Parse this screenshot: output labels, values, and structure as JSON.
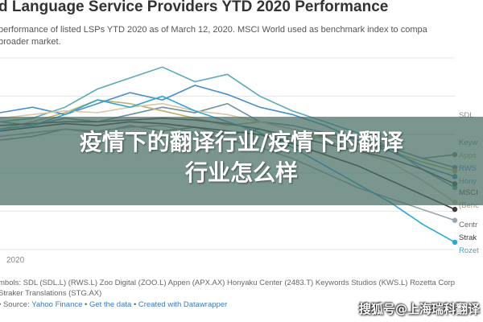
{
  "chart_data": {
    "type": "line",
    "title": "d Language Service Providers YTD 2020 Performance",
    "subtitle_lines": [
      "performance of listed LSPs YTD 2020 as of March 12, 2020. MSCI World used as benchmark index to compa",
      "broader market."
    ],
    "x_tick_label": "2020",
    "grid": true,
    "legend_placement": "right",
    "series": [
      {
        "name": "SDL",
        "color": "#8a8a8a",
        "values": [
          0.9,
          0.92,
          0.96,
          0.94,
          0.98,
          0.95,
          0.97,
          0.93,
          0.96,
          0.9,
          0.92,
          0.88,
          0.86,
          0.8,
          0.82
        ]
      },
      {
        "name": "Keyw",
        "color": "#6f8f9f",
        "values": [
          1.0,
          0.98,
          1.02,
          1.0,
          1.04,
          1.08,
          1.05,
          1.1,
          1.0,
          0.98,
          0.94,
          0.9,
          0.86,
          0.8,
          0.75
        ]
      },
      {
        "name": "Apps",
        "color": "#bfb16a",
        "values": [
          0.96,
          1.0,
          1.05,
          1.12,
          1.1,
          1.06,
          1.02,
          0.98,
          1.0,
          0.96,
          0.92,
          0.88,
          0.84,
          0.78,
          0.73
        ]
      },
      {
        "name": "RWS",
        "color": "#4a8fc8",
        "values": [
          1.05,
          1.08,
          1.04,
          1.1,
          1.16,
          1.12,
          1.2,
          1.15,
          1.08,
          1.04,
          0.98,
          0.9,
          0.84,
          0.76,
          0.7
        ]
      },
      {
        "name": "Hony",
        "color": "#5da9b5",
        "values": [
          1.0,
          1.02,
          1.08,
          1.18,
          1.24,
          1.3,
          1.22,
          1.26,
          1.14,
          1.06,
          1.0,
          0.94,
          0.86,
          0.74,
          0.64
        ]
      },
      {
        "name": "MSCI",
        "color": "#555555",
        "values": [
          0.98,
          0.99,
          1.0,
          1.0,
          1.01,
          1.02,
          1.01,
          0.99,
          0.96,
          0.92,
          0.88,
          0.84,
          0.8,
          0.74,
          0.66
        ]
      },
      {
        "name": "Bench",
        "color": "#d9c7a8",
        "values": [
          1.02,
          1.04,
          1.06,
          1.05,
          1.08,
          1.1,
          1.06,
          1.04,
          1.0,
          0.96,
          0.9,
          0.84,
          0.78,
          0.68,
          0.56
        ]
      },
      {
        "name": "Stra",
        "color": "#9aa4ad",
        "values": [
          0.92,
          0.94,
          0.96,
          0.95,
          0.97,
          0.98,
          0.94,
          0.9,
          0.86,
          0.8,
          0.72,
          0.64,
          0.58,
          0.52,
          0.46
        ]
      },
      {
        "name": "Rozetta",
        "color": "#2fa5d6",
        "values": [
          0.96,
          0.98,
          1.04,
          1.12,
          1.08,
          1.14,
          1.06,
          1.0,
          0.94,
          0.86,
          0.76,
          0.66,
          0.56,
          0.44,
          0.34
        ]
      },
      {
        "name": "Strak",
        "color": "#3d3d3d",
        "values": [
          0.95,
          0.97,
          0.99,
          0.98,
          1.0,
          0.99,
          0.97,
          0.95,
          0.93,
          0.88,
          0.82,
          0.76,
          0.68,
          0.6,
          0.52
        ]
      }
    ],
    "right_labels": [
      "SDL",
      "Keyw",
      "Apps",
      "RWS",
      "Hony",
      "MSCI",
      "(Benc",
      "Centr",
      "Strak",
      "Rozet"
    ],
    "ylim": [
      0.3,
      1.35
    ]
  },
  "footer": {
    "symbols_line": "mbols: SDL (SDL.L) (RWS.L) Zoo Digital (ZOO.L) Appen (APX.AX) Honyaku Center (2483.T) Keywords Studios (KWS.L) Rozetta Corp",
    "symbols_line2": "Straker Translations (STG.AX)",
    "source_prefix": "• Source:",
    "source_links": [
      "Yahoo Finance",
      "Get the data",
      "Created with Datawrapper"
    ]
  },
  "overlay": {
    "line1": "疫情下的翻译行业/疫情下的翻译",
    "line2": "行业怎么样"
  },
  "watermark": "搜狐号@上海瑞科翻译"
}
